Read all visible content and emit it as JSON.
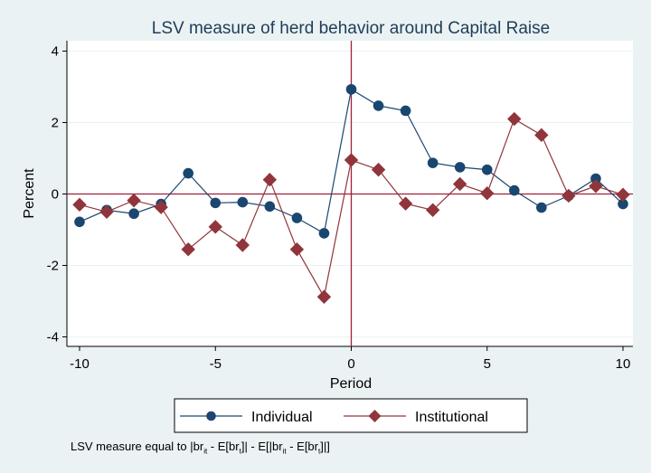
{
  "chart_data": {
    "type": "line",
    "title": "LSV measure of herd behavior around Capital Raise",
    "xlabel": "Period",
    "ylabel": "Percent",
    "xlim": [
      -10,
      10
    ],
    "ylim": [
      -4.3,
      4.3
    ],
    "x_ticks": [
      -10,
      -5,
      0,
      5,
      10
    ],
    "y_ticks": [
      -4,
      -2,
      0,
      2,
      4
    ],
    "grid": "horizontal",
    "reference_lines": {
      "x": 0,
      "y": 0
    },
    "legend_position": "bottom",
    "x": [
      -10,
      -9,
      -8,
      -7,
      -6,
      -5,
      -4,
      -3,
      -2,
      -1,
      0,
      1,
      2,
      3,
      4,
      5,
      6,
      7,
      8,
      9,
      10
    ],
    "series": [
      {
        "name": "Individual",
        "marker": "circle",
        "color": "#1a476f",
        "values": [
          -0.78,
          -0.45,
          -0.55,
          -0.28,
          0.58,
          -0.25,
          -0.23,
          -0.35,
          -0.67,
          -1.1,
          2.93,
          2.47,
          2.33,
          0.87,
          0.75,
          0.68,
          0.1,
          -0.38,
          -0.05,
          0.43,
          -0.28
        ]
      },
      {
        "name": "Institutional",
        "marker": "diamond",
        "color": "#90353b",
        "values": [
          -0.3,
          -0.5,
          -0.18,
          -0.37,
          -1.55,
          -0.92,
          -1.43,
          0.4,
          -1.55,
          -2.88,
          0.95,
          0.68,
          -0.27,
          -0.45,
          0.28,
          0.02,
          2.1,
          1.65,
          -0.05,
          0.22,
          -0.02
        ]
      }
    ]
  },
  "note": {
    "prefix": "LSV measure equal to |br",
    "sub1": "it",
    "part2": " - E[br",
    "sub2": "t",
    "part3": "]| - E[|br",
    "sub3": "it",
    "part4": " - E[br",
    "sub4": "t",
    "suffix": "]|]"
  }
}
